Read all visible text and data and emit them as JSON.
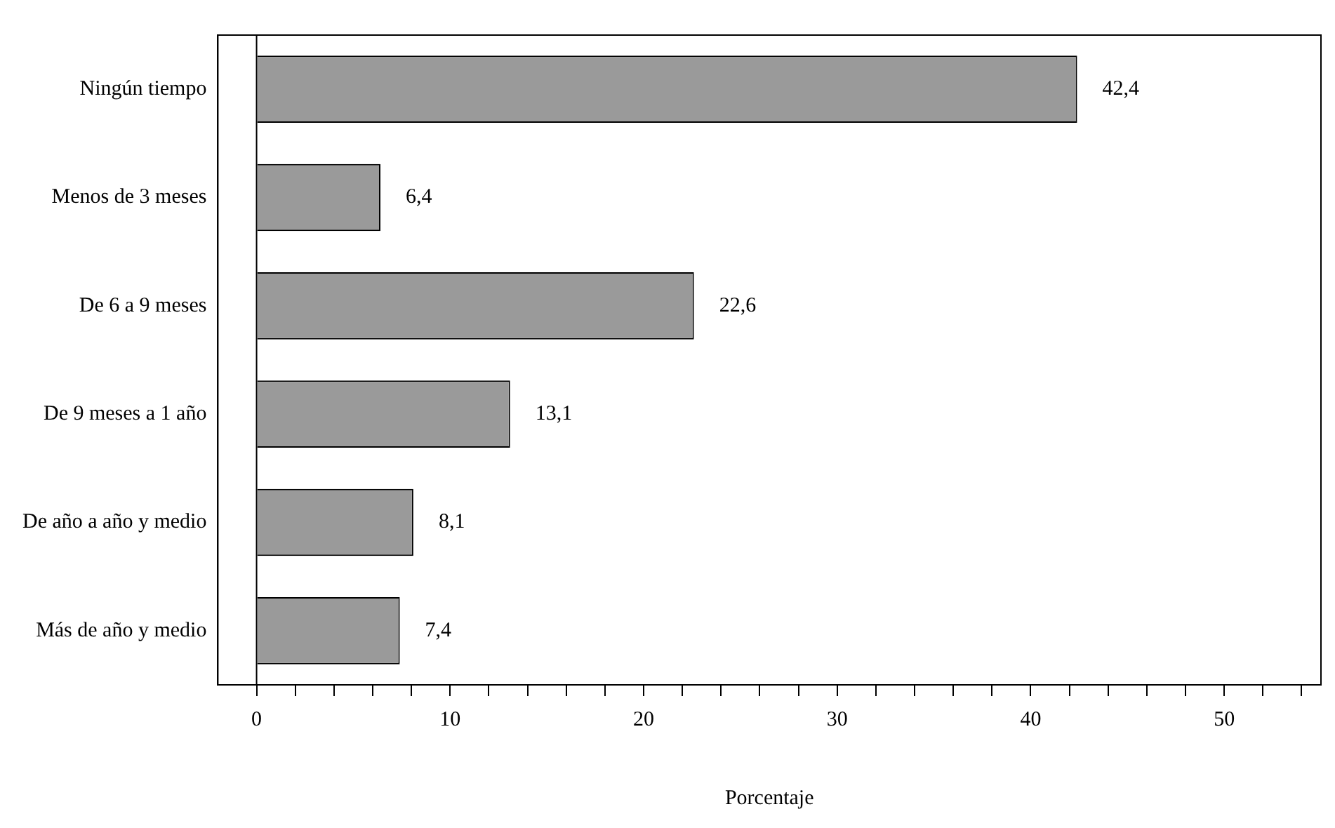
{
  "chart_data": {
    "type": "bar",
    "orientation": "horizontal",
    "xlabel": "Porcentaje",
    "categories": [
      "Ningún tiempo",
      "Menos de 3 meses",
      "De 6 a 9 meses",
      "De 9 meses a 1 año",
      "De año a año y medio",
      "Más de año y medio"
    ],
    "values": [
      42.4,
      6.4,
      22.6,
      13.1,
      8.1,
      7.4
    ],
    "value_labels": [
      "42,4",
      "6,4",
      "22,6",
      "13,1",
      "8,1",
      "7,4"
    ],
    "color": "#9a9a9a",
    "ref_lines": [
      {
        "axis": "x",
        "value": 0,
        "color": "#000000"
      }
    ],
    "xlim": [
      -2,
      55
    ],
    "xticks": [
      0,
      {
        "value": 2,
        "label": null
      },
      {
        "value": 4,
        "label": null
      },
      {
        "value": 6,
        "label": null
      },
      {
        "value": 8,
        "label": null
      },
      10,
      {
        "value": 12,
        "label": null
      },
      {
        "value": 14,
        "label": null
      },
      {
        "value": 16,
        "label": null
      },
      {
        "value": 18,
        "label": null
      },
      20,
      {
        "value": 22,
        "label": null
      },
      {
        "value": 24,
        "label": null
      },
      {
        "value": 26,
        "label": null
      },
      {
        "value": 28,
        "label": null
      },
      30,
      {
        "value": 32,
        "label": null
      },
      {
        "value": 34,
        "label": null
      },
      {
        "value": 36,
        "label": null
      },
      {
        "value": 38,
        "label": null
      },
      40,
      {
        "value": 42,
        "label": null
      },
      {
        "value": 44,
        "label": null
      },
      {
        "value": 46,
        "label": null
      },
      {
        "value": 48,
        "label": null
      },
      50,
      {
        "value": 52,
        "label": null
      },
      {
        "value": 54,
        "label": null
      }
    ],
    "grid": false,
    "legend": false
  }
}
